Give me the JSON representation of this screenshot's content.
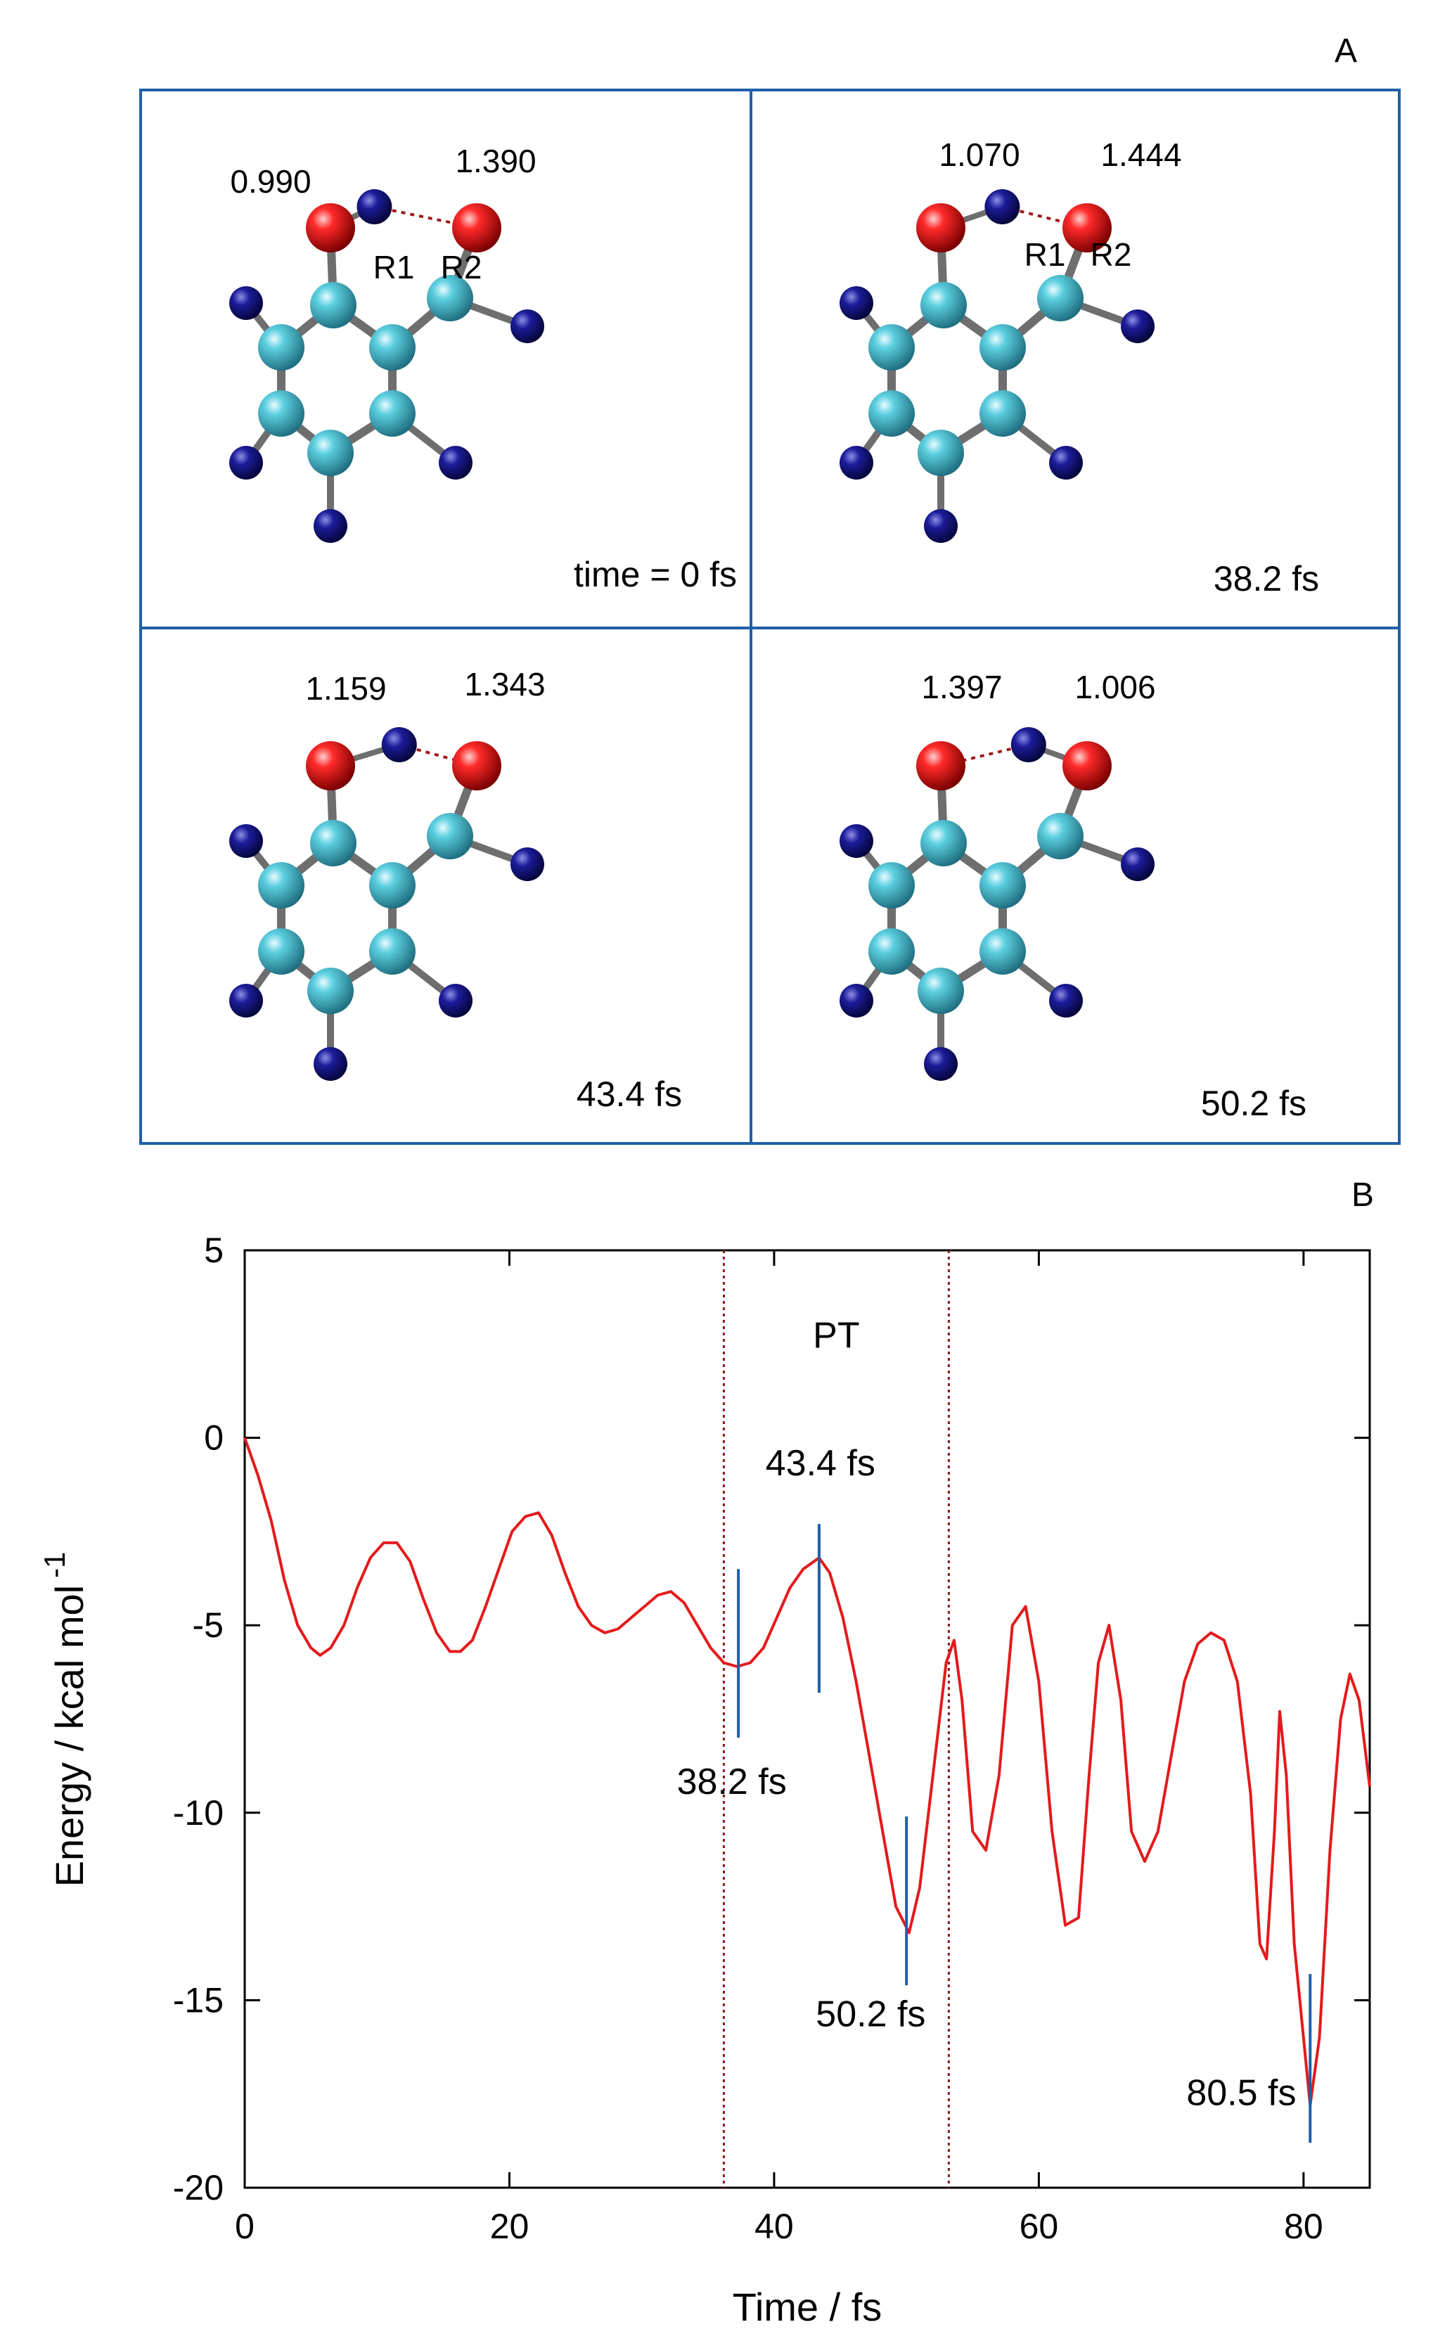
{
  "panel_a": {
    "label": "A",
    "frames": [
      {
        "r1": "0.990",
        "r2": "1.390",
        "bond1": "R1",
        "bond2": "R2",
        "time": "time = 0 fs",
        "hydrogen_pos": 0.3
      },
      {
        "r1": "1.070",
        "r2": "1.444",
        "bond1": "R1",
        "bond2": "R2",
        "time": "38.2 fs",
        "hydrogen_pos": 0.42
      },
      {
        "r1": "1.159",
        "r2": "1.343",
        "time": "43.4 fs",
        "hydrogen_pos": 0.47
      },
      {
        "r1": "1.397",
        "r2": "1.006",
        "time": "50.2 fs",
        "hydrogen_pos": 0.6
      }
    ],
    "colors": {
      "border": "#1f5fa8",
      "oxygen": "#e01010",
      "carbon": "#4fc6d6",
      "hydrogen": "#1a1a8c",
      "bond": "#6e6e6e",
      "hbond": "#a01818"
    }
  },
  "chart_data": {
    "type": "line",
    "panel_label": "B",
    "xlabel": "Time / fs",
    "ylabel": "Energy / kcal mol",
    "ylabel_superscript": "-1",
    "xlim": [
      0,
      85
    ],
    "ylim": [
      -20,
      5
    ],
    "xticks": [
      "0",
      "20",
      "40",
      "60",
      "80"
    ],
    "yticks": [
      "5",
      "0",
      "-5",
      "-10",
      "-15",
      "-20"
    ],
    "series": [
      {
        "color": "#e41a1c",
        "x": [
          0,
          1,
          2,
          3,
          4,
          5,
          5.7,
          6.5,
          7.5,
          8.5,
          9.5,
          10.5,
          11.5,
          12.5,
          13.5,
          14.5,
          15.5,
          16.3,
          17.2,
          18.2,
          19.2,
          20.2,
          21.2,
          22.2,
          23.2,
          24.2,
          25.2,
          26.2,
          27.2,
          28.2,
          29.2,
          30.2,
          31.2,
          32.2,
          33.2,
          34.2,
          35.2,
          36.2,
          37.2,
          38.2,
          39.2,
          40.2,
          41.2,
          42.2,
          43.4,
          44.2,
          45.2,
          46.2,
          47.2,
          48.2,
          49.2,
          50.2,
          51,
          52,
          53,
          53.6,
          54.2,
          55,
          56,
          57,
          58,
          59,
          60,
          61,
          62,
          63,
          63.8,
          64.5,
          65.3,
          66.2,
          67,
          68,
          69,
          70,
          71,
          72,
          73,
          74,
          75,
          76,
          76.7,
          77.2,
          77.8,
          78.2,
          78.7,
          79.3,
          80.5,
          81.2,
          82,
          82.8,
          83.5,
          84.2,
          85
        ],
        "y": [
          0,
          -1,
          -2.2,
          -3.8,
          -5.0,
          -5.6,
          -5.8,
          -5.6,
          -5.0,
          -4.0,
          -3.2,
          -2.8,
          -2.8,
          -3.3,
          -4.3,
          -5.2,
          -5.7,
          -5.7,
          -5.4,
          -4.5,
          -3.5,
          -2.5,
          -2.1,
          -2.0,
          -2.6,
          -3.6,
          -4.5,
          -5.0,
          -5.2,
          -5.1,
          -4.8,
          -4.5,
          -4.2,
          -4.1,
          -4.4,
          -5.0,
          -5.6,
          -6.0,
          -6.1,
          -6.0,
          -5.6,
          -4.8,
          -4.0,
          -3.5,
          -3.2,
          -3.6,
          -4.8,
          -6.5,
          -8.5,
          -10.5,
          -12.5,
          -13.2,
          -12.0,
          -9.0,
          -6.0,
          -5.4,
          -7.0,
          -10.5,
          -11.0,
          -9.0,
          -5.0,
          -4.5,
          -6.5,
          -10.5,
          -13.0,
          -12.8,
          -9.0,
          -6.0,
          -5.0,
          -7.0,
          -10.5,
          -11.3,
          -10.5,
          -8.5,
          -6.5,
          -5.5,
          -5.2,
          -5.4,
          -6.5,
          -9.5,
          -13.5,
          -13.9,
          -10.5,
          -7.3,
          -9.0,
          -13.5,
          -17.8,
          -16.0,
          -11.0,
          -7.5,
          -6.3,
          -7.0,
          -9.3
        ]
      }
    ],
    "region": {
      "x_start": 36.2,
      "x_end": 53.2,
      "label": "PT",
      "line_color": "#8b1a1a"
    },
    "markers": [
      {
        "x": 37.3,
        "y_from": -3.5,
        "y_to": -8.0,
        "label": "38.2 fs",
        "label_x": 36.8,
        "label_y": -9.5
      },
      {
        "x": 43.4,
        "y_from": -2.3,
        "y_to": -6.8,
        "label": "43.4 fs",
        "label_x": 43.5,
        "label_y": -1.0
      },
      {
        "x": 50.0,
        "y_from": -10.1,
        "y_to": -14.6,
        "label": "50.2 fs",
        "label_x": 47.3,
        "label_y": -15.7
      },
      {
        "x": 80.5,
        "y_from": -14.3,
        "y_to": -18.8,
        "label": "80.5 fs",
        "label_x": 75.3,
        "label_y": -17.8
      }
    ],
    "marker_color": "#1f5fa8",
    "grid": false,
    "legend": "none"
  }
}
